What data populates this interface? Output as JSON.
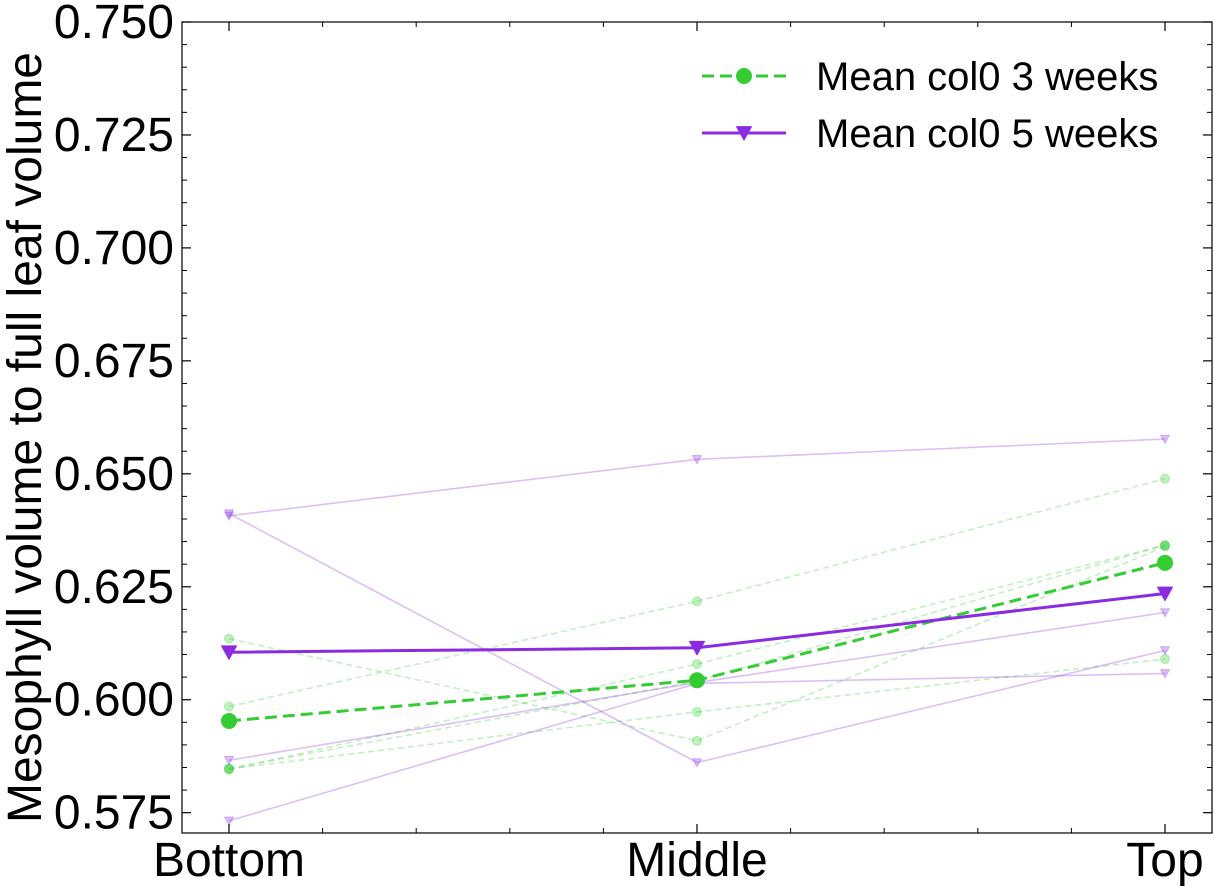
{
  "chart_data": {
    "type": "line",
    "xlabel": "",
    "ylabel": "Mesophyll volume to full leaf volume",
    "categories": [
      "Bottom",
      "Middle",
      "Top"
    ],
    "ylim": [
      0.5705,
      0.75
    ],
    "yticks": [
      0.575,
      0.6,
      0.625,
      0.65,
      0.675,
      0.7,
      0.725,
      0.75
    ],
    "ytick_labels": [
      "0.575",
      "0.600",
      "0.625",
      "0.650",
      "0.675",
      "0.700",
      "0.725",
      "0.750"
    ],
    "grid": false,
    "legend_position": "top-right",
    "colors": {
      "week3": "#33cc33",
      "week5": "#8a2be2"
    },
    "series": [
      {
        "name": "Mean col0 3 weeks",
        "group": "week3",
        "role": "mean",
        "style": "dashed",
        "marker": "circle",
        "values": [
          0.5953,
          0.6043,
          0.6303
        ]
      },
      {
        "name": "Mean col0 5 weeks",
        "group": "week5",
        "role": "mean",
        "style": "solid",
        "marker": "triangle-down",
        "values": [
          0.6105,
          0.6115,
          0.6235
        ]
      },
      {
        "group": "week3",
        "role": "sample",
        "style": "dashed",
        "marker": "circle",
        "values": [
          0.5985,
          0.6218,
          0.6489
        ]
      },
      {
        "group": "week3",
        "role": "sample",
        "style": "dashed",
        "marker": "circle",
        "values": [
          0.5845,
          0.6079,
          0.6342
        ]
      },
      {
        "group": "week3",
        "role": "sample",
        "style": "dashed",
        "marker": "circle",
        "values": [
          0.6135,
          0.5909,
          0.6339
        ]
      },
      {
        "group": "week3",
        "role": "sample",
        "style": "dashed",
        "marker": "circle",
        "values": [
          0.5847,
          0.5973,
          0.609
        ]
      },
      {
        "group": "week3",
        "role": "sample",
        "style": "dashed",
        "marker": "circle",
        "values": [
          0.5848,
          0.6041,
          0.6342
        ]
      },
      {
        "group": "week5",
        "role": "sample",
        "style": "solid",
        "marker": "triangle-down",
        "values": [
          0.6407,
          0.6532,
          0.6577
        ]
      },
      {
        "group": "week5",
        "role": "sample",
        "style": "solid",
        "marker": "triangle-down",
        "values": [
          0.6412,
          0.5861,
          0.6109
        ]
      },
      {
        "group": "week5",
        "role": "sample",
        "style": "solid",
        "marker": "triangle-down",
        "values": [
          0.5866,
          0.6038,
          0.6193
        ]
      },
      {
        "group": "week5",
        "role": "sample",
        "style": "solid",
        "marker": "triangle-down",
        "values": [
          0.5732,
          0.6036,
          0.6058
        ]
      }
    ]
  }
}
